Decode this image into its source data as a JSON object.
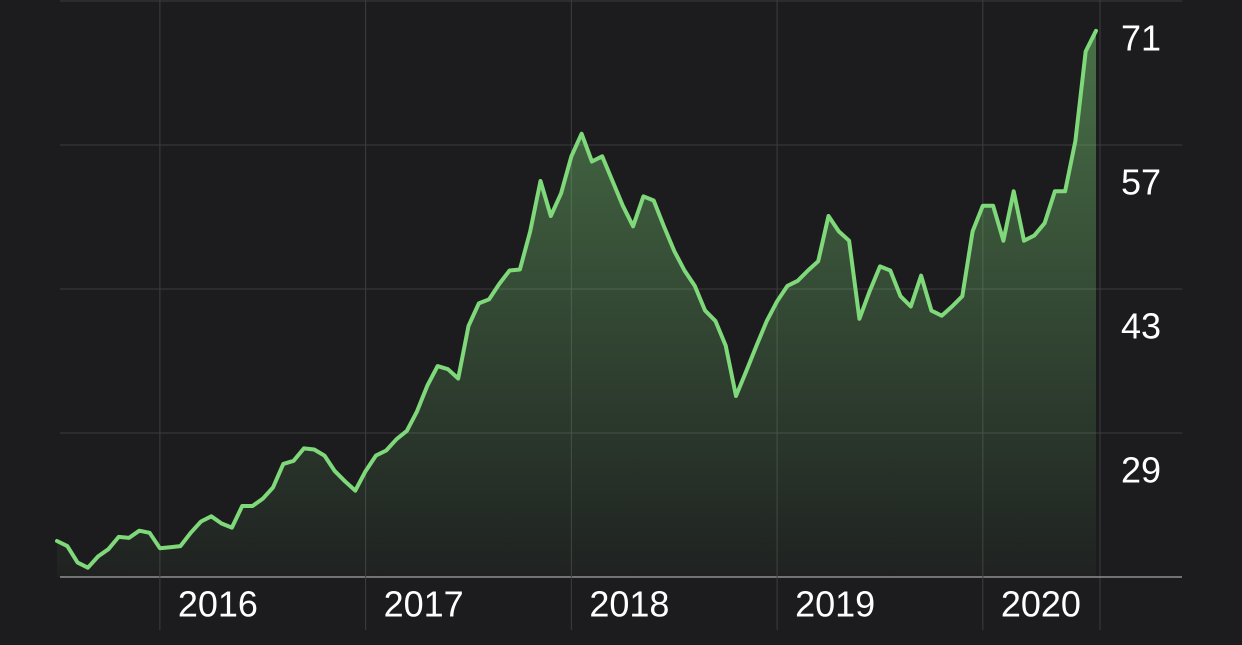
{
  "chart_data": {
    "type": "line",
    "x": [
      2015.5,
      2015.55,
      2015.6,
      2015.65,
      2015.7,
      2015.75,
      2015.8,
      2015.85,
      2015.9,
      2015.95,
      2016,
      2016.05,
      2016.1,
      2016.15,
      2016.2,
      2016.25,
      2016.3,
      2016.35,
      2016.4,
      2016.45,
      2016.5,
      2016.55,
      2016.6,
      2016.65,
      2016.7,
      2016.75,
      2016.8,
      2016.85,
      2016.9,
      2016.95,
      2017,
      2017.05,
      2017.1,
      2017.15,
      2017.2,
      2017.25,
      2017.3,
      2017.35,
      2017.4,
      2017.45,
      2017.5,
      2017.55,
      2017.6,
      2017.65,
      2017.7,
      2017.75,
      2017.8,
      2017.85,
      2017.9,
      2017.95,
      2018,
      2018.05,
      2018.1,
      2018.15,
      2018.2,
      2018.25,
      2018.3,
      2018.35,
      2018.4,
      2018.45,
      2018.5,
      2018.55,
      2018.6,
      2018.65,
      2018.7,
      2018.75,
      2018.8,
      2018.85,
      2018.9,
      2018.95,
      2019,
      2019.05,
      2019.1,
      2019.15,
      2019.2,
      2019.25,
      2019.3,
      2019.35,
      2019.4,
      2019.45,
      2019.5,
      2019.55,
      2019.6,
      2019.65,
      2019.7,
      2019.75,
      2019.8,
      2019.85,
      2019.9,
      2019.95,
      2020,
      2020.05,
      2020.1,
      2020.15,
      2020.2,
      2020.25,
      2020.3,
      2020.35,
      2020.4,
      2020.45,
      2020.5,
      2020.55
    ],
    "series": [
      {
        "color": "#7fd87a",
        "values": [
          18.5,
          18.0,
          16.4,
          15.9,
          17.0,
          17.7,
          18.9,
          18.8,
          19.5,
          19.3,
          17.8,
          17.9,
          18.0,
          19.3,
          20.4,
          20.9,
          20.2,
          19.8,
          21.9,
          21.9,
          22.6,
          23.7,
          26.0,
          26.3,
          27.5,
          27.4,
          26.8,
          25.3,
          24.3,
          23.4,
          25.3,
          26.8,
          27.3,
          28.4,
          29.2,
          31.1,
          33.6,
          35.5,
          35.2,
          34.3,
          39.4,
          41.6,
          42.0,
          43.5,
          44.8,
          44.9,
          48.6,
          53.5,
          50.1,
          52.3,
          55.9,
          58.1,
          55.4,
          55.9,
          53.5,
          51.1,
          49.1,
          52.0,
          51.6,
          49.1,
          46.7,
          44.8,
          43.3,
          40.9,
          39.9,
          37.5,
          32.6,
          35.0,
          37.5,
          39.9,
          41.8,
          43.3,
          43.8,
          44.8,
          45.7,
          50.1,
          48.6,
          47.7,
          40.1,
          42.8,
          45.2,
          44.8,
          42.3,
          41.3,
          44.3,
          40.9,
          40.4,
          41.3,
          42.3,
          48.6,
          51.1,
          51.1,
          47.7,
          52.5,
          47.7,
          48.2,
          49.4,
          52.5,
          52.5,
          57.4,
          66.1,
          68.1
        ]
      }
    ],
    "xlim": [
      2015.5,
      2020.55
    ],
    "xticks": [
      2016,
      2017,
      2018,
      2019,
      2020
    ],
    "ylim": [
      15,
      71
    ],
    "yticks": [
      29,
      43,
      57,
      71
    ],
    "grid": true
  }
}
